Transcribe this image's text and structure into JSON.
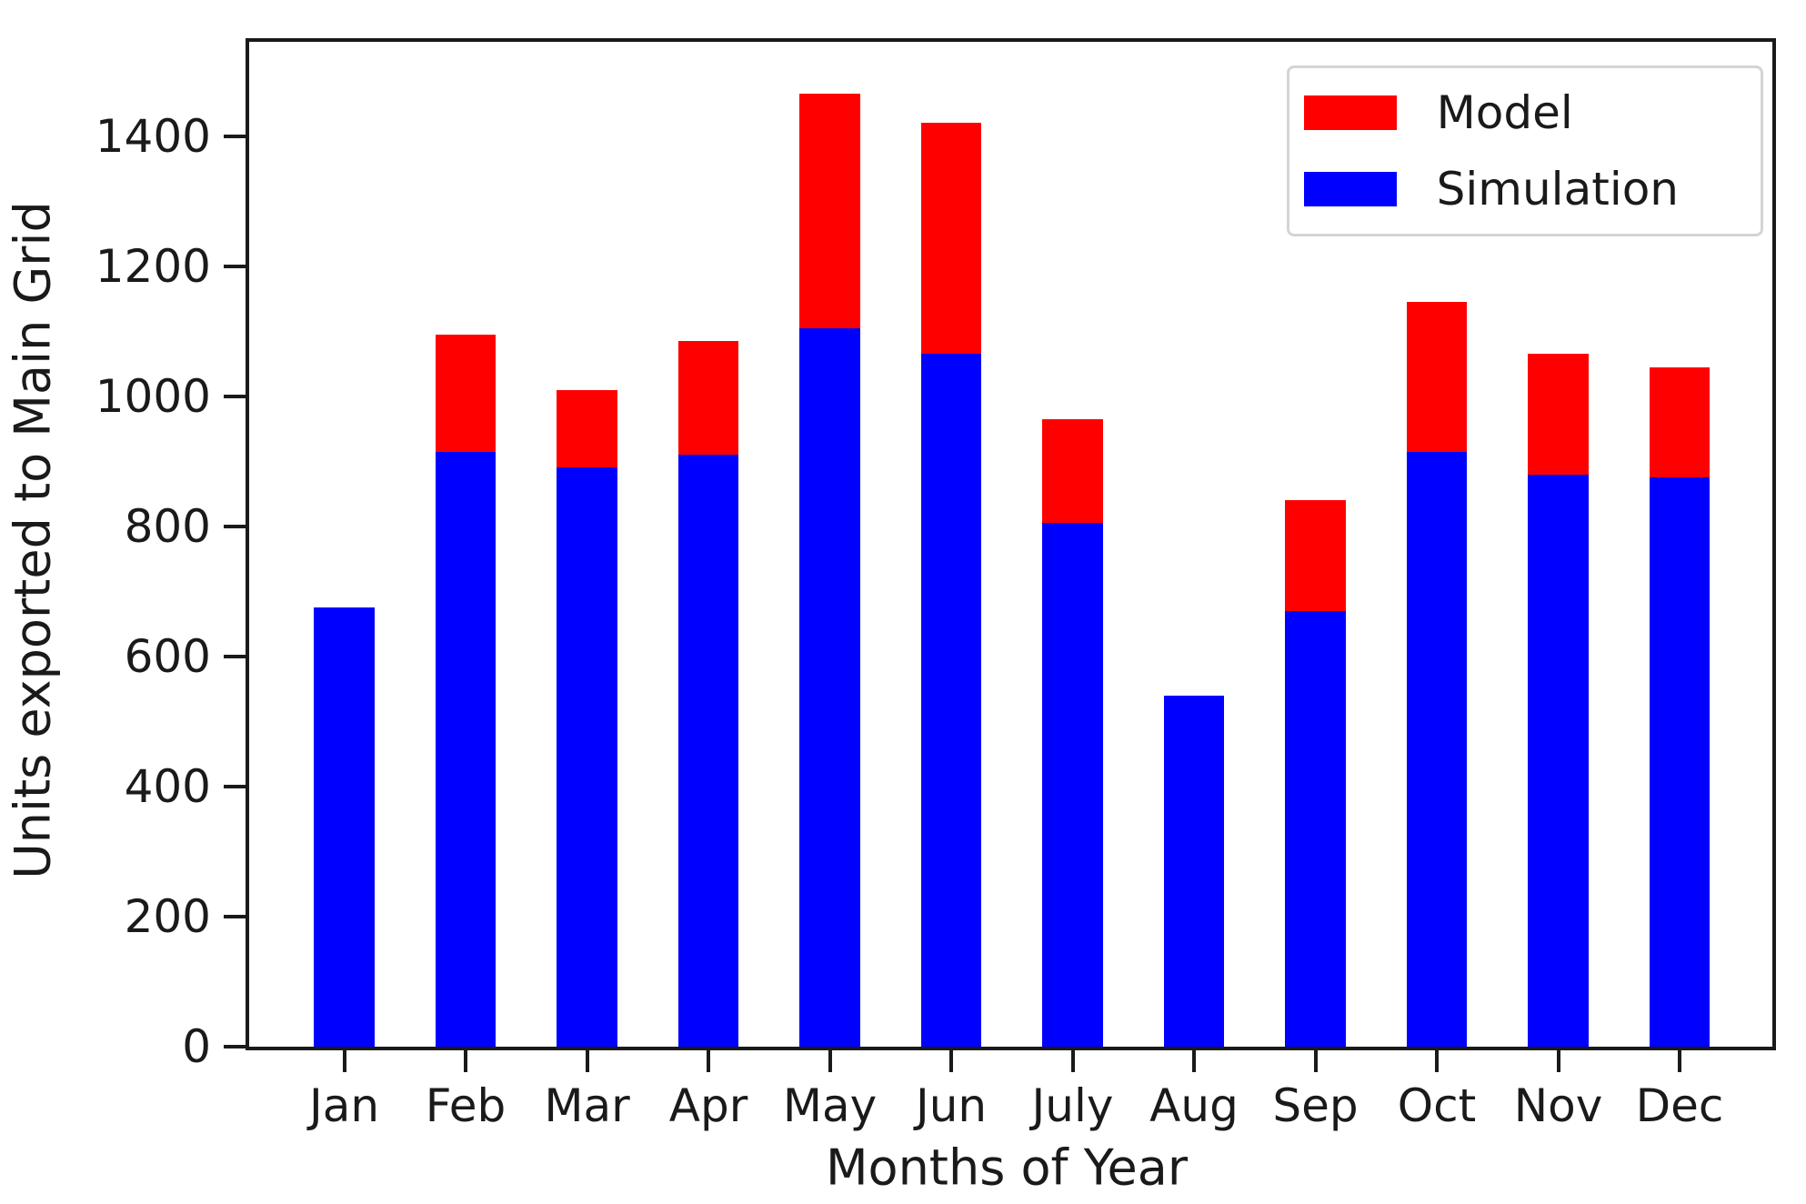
{
  "chart_data": {
    "type": "bar",
    "stacked": true,
    "title": "",
    "xlabel": "Months of Year",
    "ylabel": "Units exported to Main Grid",
    "categories": [
      "Jan",
      "Feb",
      "Mar",
      "Apr",
      "May",
      "Jun",
      "July",
      "Aug",
      "Sep",
      "Oct",
      "Nov",
      "Dec"
    ],
    "series": [
      {
        "name": "Simulation",
        "color": "#0000ff",
        "values": [
          675,
          915,
          890,
          910,
          1105,
          1065,
          805,
          540,
          670,
          915,
          880,
          875
        ]
      },
      {
        "name": "Model",
        "color": "#ff0000",
        "values": [
          0,
          180,
          120,
          175,
          360,
          355,
          160,
          0,
          170,
          230,
          185,
          170
        ]
      }
    ],
    "totals": [
      675,
      1095,
      1010,
      1085,
      1465,
      1420,
      965,
      540,
      840,
      1145,
      1065,
      1045
    ],
    "legend": {
      "position": "upper-right",
      "entries": [
        {
          "label": "Model",
          "color": "#ff0000"
        },
        {
          "label": "Simulation",
          "color": "#0000ff"
        }
      ]
    },
    "ylim": [
      0,
      1545
    ],
    "xlim": [
      -0.783,
      11.764
    ],
    "yticks": [
      0,
      200,
      400,
      600,
      800,
      1000,
      1200,
      1400
    ],
    "bar_width_fraction": 0.5,
    "grid": false
  },
  "colors": {
    "axis": "#1a1a1a",
    "background": "#ffffff",
    "legend_border": "#d4d4d4"
  }
}
